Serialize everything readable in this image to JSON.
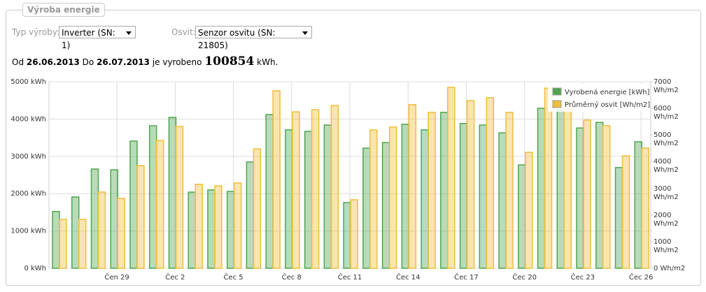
{
  "panel_title": "Výroba energie",
  "filters": {
    "type_label": "Typ výroby:",
    "type_value": "Inverter (SN: 1)",
    "light_label": "Osvit:",
    "light_value": "Senzor osvitu (SN: 21805)"
  },
  "summary": {
    "from_label": "Od",
    "from": "26.06.2013",
    "to_label": "Do",
    "to": "26.07.2013",
    "produced_label": "je vyrobeno",
    "total": 100854,
    "unit": "kWh."
  },
  "chart_data": {
    "type": "bar",
    "categories": [
      null,
      null,
      null,
      "Čen 29",
      null,
      null,
      "Čec 2",
      null,
      null,
      "Čec 5",
      null,
      null,
      "Čec 8",
      null,
      null,
      "Čec 11",
      null,
      null,
      "Čec 14",
      null,
      null,
      "Čec 17",
      null,
      null,
      "Čec 20",
      null,
      null,
      "Čec 23",
      null,
      null,
      "Čec 26"
    ],
    "series": [
      {
        "name": "Vyrobená energie [kWh]",
        "color": "#4fa64f",
        "values": [
          1520,
          1910,
          2660,
          2640,
          3410,
          3820,
          4045,
          2040,
          2100,
          2060,
          2850,
          4120,
          3710,
          3670,
          3840,
          1760,
          3220,
          3370,
          3860,
          3710,
          4180,
          3880,
          3840,
          3630,
          2770,
          4290,
          4250,
          3760,
          3910,
          2700,
          3390
        ]
      },
      {
        "name": "Průměrný osvit [Wh/m2]",
        "color": "#efbf3a",
        "axis": "y2",
        "values": [
          1835,
          1835,
          2860,
          2620,
          3850,
          4800,
          5320,
          3150,
          3090,
          3200,
          4480,
          6660,
          5870,
          5950,
          6110,
          2570,
          5190,
          5300,
          6140,
          5850,
          6790,
          6290,
          6400,
          5850,
          4350,
          6760,
          6200,
          5560,
          5350,
          4220,
          4510
        ]
      }
    ],
    "ylim": [
      0,
      5000
    ],
    "yticks": [
      {
        "value": 0,
        "label": "0 kWh"
      },
      {
        "value": 1000,
        "label": "1000 kWh"
      },
      {
        "value": 2000,
        "label": "2000 kWh"
      },
      {
        "value": 3000,
        "label": "3000 kWh"
      },
      {
        "value": 4000,
        "label": "4000 kWh"
      },
      {
        "value": 5000,
        "label": "5000 kWh"
      }
    ],
    "y2lim": [
      0,
      7000
    ],
    "y2ticks": [
      {
        "value": 0,
        "label": "0 Wh/m2"
      },
      {
        "value": 1000,
        "label": "1000 Wh/m2"
      },
      {
        "value": 2000,
        "label": "2000 Wh/m2"
      },
      {
        "value": 3000,
        "label": "3000 Wh/m2"
      },
      {
        "value": 4000,
        "label": "4000 Wh/m2"
      },
      {
        "value": 5000,
        "label": "5000 Wh/m2"
      },
      {
        "value": 6000,
        "label": "6000 Wh/m2"
      },
      {
        "value": 7000,
        "label": "7000 Wh/m2"
      }
    ],
    "grid": true,
    "legend": "top-right"
  }
}
